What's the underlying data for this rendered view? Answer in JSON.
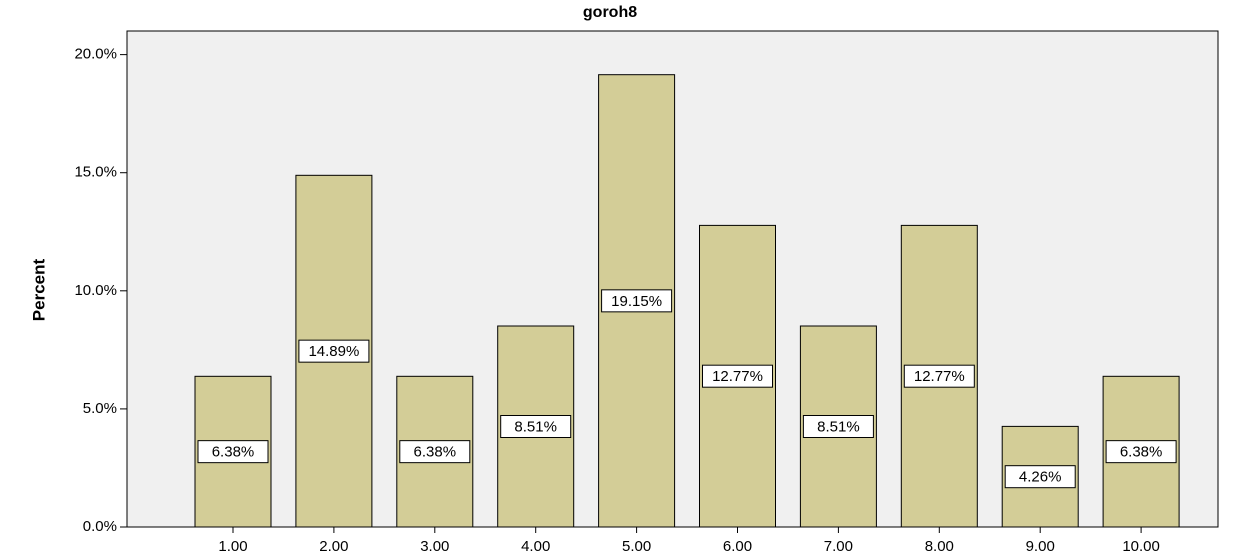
{
  "chart_data": {
    "type": "bar",
    "title": "goroh8",
    "ylabel": "Percent",
    "categories": [
      "1.00",
      "2.00",
      "3.00",
      "4.00",
      "5.00",
      "6.00",
      "7.00",
      "8.00",
      "9.00",
      "10.00"
    ],
    "values": [
      6.38,
      14.89,
      6.38,
      8.51,
      19.15,
      12.77,
      8.51,
      12.77,
      4.26,
      6.38
    ],
    "value_labels": [
      "6.38%",
      "14.89%",
      "6.38%",
      "8.51%",
      "19.15%",
      "12.77%",
      "8.51%",
      "12.77%",
      "4.26%",
      "6.38%"
    ],
    "color": "#d3cd97",
    "ylim": [
      0,
      21
    ],
    "yticks": [
      {
        "value": 0,
        "label": "0.0%"
      },
      {
        "value": 5,
        "label": "5.0%"
      },
      {
        "value": 10,
        "label": "10.0%"
      },
      {
        "value": 15,
        "label": "15.0%"
      },
      {
        "value": 20,
        "label": "20.0%"
      }
    ],
    "grid": false
  }
}
